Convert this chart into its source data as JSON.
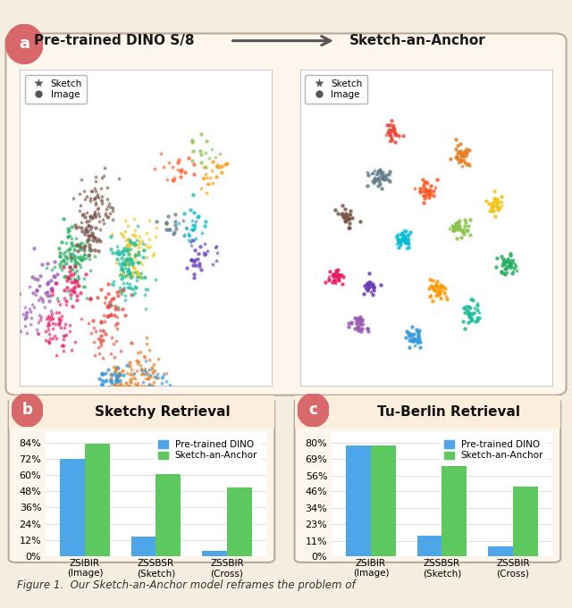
{
  "fig_width": 6.4,
  "fig_height": 6.81,
  "bg_color": "#f5ede0",
  "panel_a_bg": "#fdf6ec",
  "panel_bc_header_bg": "#fbeedd",
  "panel_bc_box_bg": "#fdf6ec",
  "label_circle_color": "#d9686a",
  "scatter_panel_bg": "#ffffff",
  "panel_a_title_left": "Pre-trained DINO S/8",
  "panel_a_title_right": "Sketch-an-Anchor",
  "panel_b_title": "Sketchy Retrieval",
  "panel_c_title": "Tu-Berlin Retrieval",
  "bar_blue": "#4da6e8",
  "bar_green": "#5dc85d",
  "bar_categories": [
    "ZSIBIR\n(Image)",
    "ZSSBSR\n(Sketch)",
    "ZSSBIR\n(Cross)"
  ],
  "bar_b_blue": [
    0.72,
    0.145,
    0.04
  ],
  "bar_b_green": [
    0.83,
    0.61,
    0.51
  ],
  "bar_c_blue": [
    0.785,
    0.145,
    0.07
  ],
  "bar_c_green": [
    0.785,
    0.635,
    0.495
  ],
  "bar_b_yticks": [
    0,
    12,
    24,
    36,
    48,
    60,
    72,
    84
  ],
  "bar_c_yticks": [
    0,
    11,
    23,
    34,
    46,
    57,
    69,
    80
  ],
  "legend_label1": "Pre-trained DINO",
  "legend_label2": "Sketch-an-Anchor",
  "scatter_colors": [
    "#e74c3c",
    "#e67e22",
    "#f1c40f",
    "#27ae60",
    "#1abc9c",
    "#3498db",
    "#9b59b6",
    "#e91e63",
    "#795548",
    "#607d8b",
    "#ff5722",
    "#8bc34a",
    "#00bcd4",
    "#673ab7",
    "#ff9800"
  ],
  "footer_text": "Figure 1.  Our Sketch-an-Anchor model reframes the problem of"
}
